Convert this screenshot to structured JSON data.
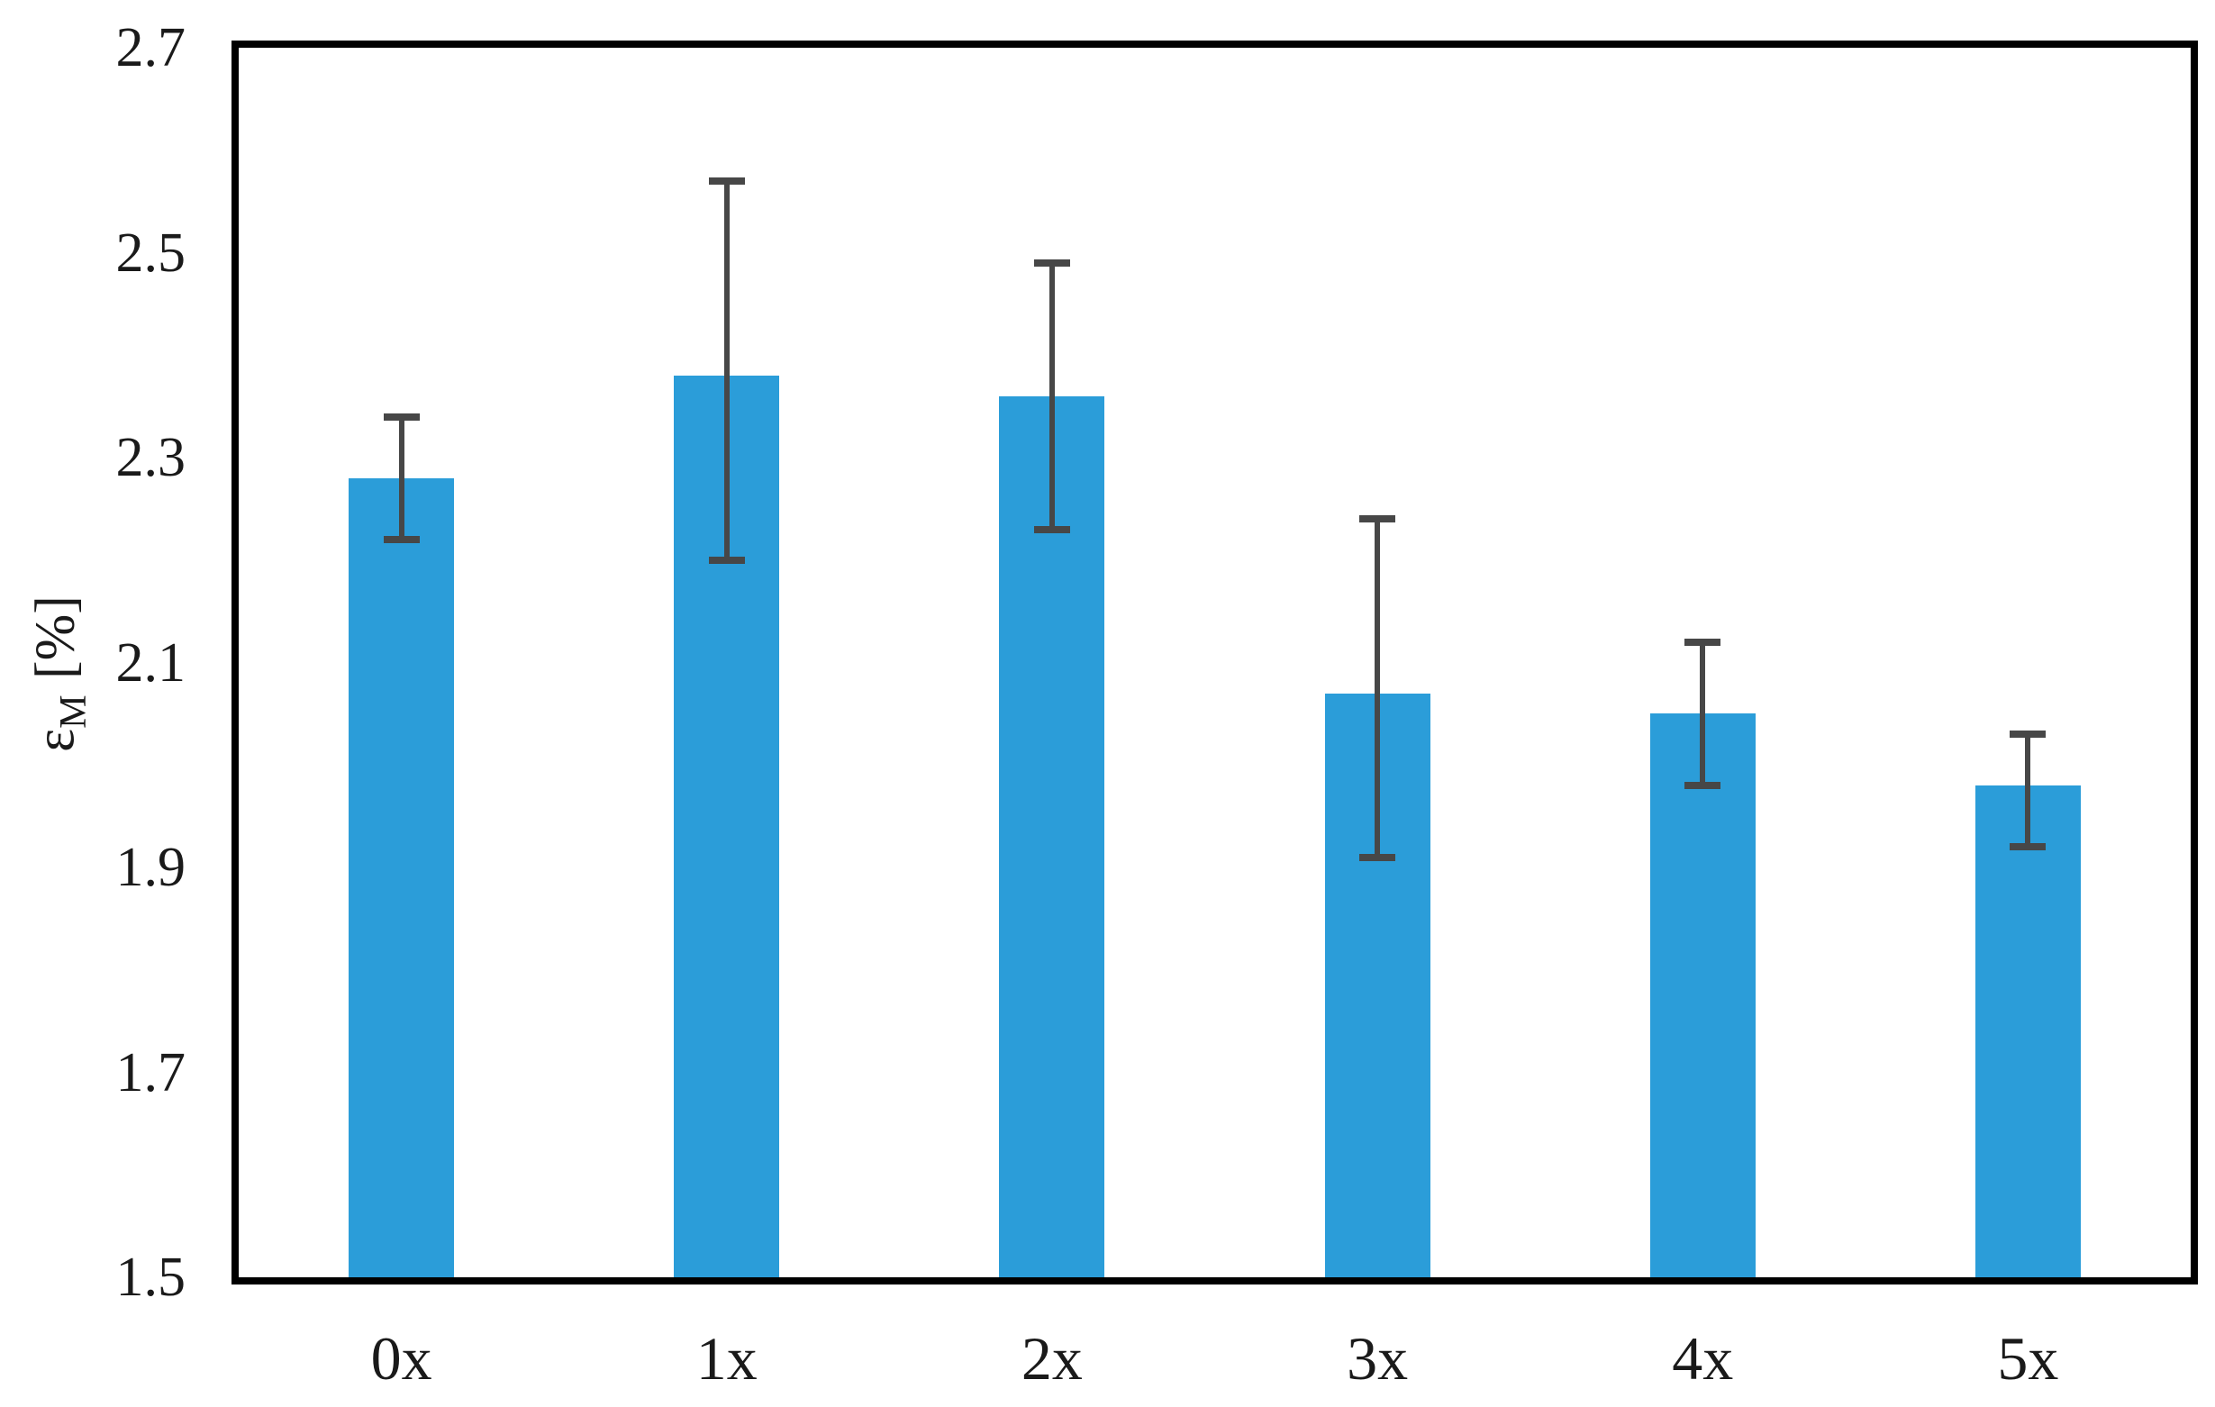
{
  "chart_data": {
    "type": "bar",
    "title": "",
    "xlabel": "",
    "ylabel": "εM [%]",
    "ylabel_parts": {
      "symbol": "ε",
      "subscript": "M",
      "unit": "[%]"
    },
    "categories": [
      "0x",
      "1x",
      "2x",
      "3x",
      "4x",
      "5x"
    ],
    "values": [
      2.28,
      2.38,
      2.36,
      2.07,
      2.05,
      1.98
    ],
    "error_high": [
      2.34,
      2.57,
      2.49,
      2.24,
      2.12,
      2.03
    ],
    "error_low": [
      2.22,
      2.2,
      2.23,
      1.91,
      1.98,
      1.92
    ],
    "ylim": [
      1.5,
      2.7
    ],
    "yticks": [
      2.7,
      2.5,
      2.3,
      2.1,
      1.9,
      1.7,
      1.5
    ],
    "ytick_labels": [
      "2.7",
      "2.5",
      "2.3",
      "2.1",
      "1.9",
      "1.7",
      "1.5"
    ],
    "grid": false,
    "legend_position": "none",
    "bar_color": "#2B9DD9",
    "error_color": "#474747",
    "frame_color": "#000000",
    "text_color": "#1a1a1a"
  }
}
